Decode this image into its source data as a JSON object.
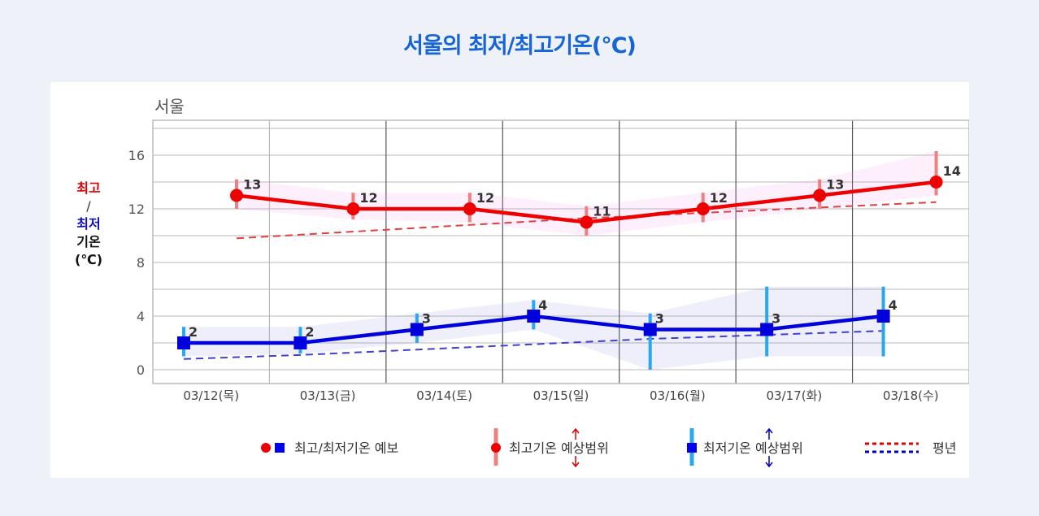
{
  "page_title": "서울의 최저/최고기온(°C)",
  "chart_data": {
    "type": "line",
    "title": "서울의 최저/최고기온(°C)",
    "subtitle": "서울",
    "ylabel": {
      "line1": "최고",
      "sep": "/",
      "line2": "최저",
      "line3": "기온",
      "unit": "(℃)"
    },
    "ylim": [
      -1,
      18
    ],
    "yticks": [
      0,
      4,
      8,
      12,
      16
    ],
    "grid": true,
    "categories": [
      "03/12(목)",
      "03/13(금)",
      "03/14(토)",
      "03/15(일)",
      "03/16(월)",
      "03/17(화)",
      "03/18(수)"
    ],
    "series": [
      {
        "name": "최고기온 예보",
        "color": "#ee0000",
        "values": [
          13,
          12,
          12,
          11,
          12,
          13,
          14
        ]
      },
      {
        "name": "최저기온 예보",
        "color": "#0000dd",
        "values": [
          2,
          2,
          3,
          4,
          3,
          3,
          4
        ]
      },
      {
        "name": "최고기온 예상범위",
        "color": "#f08080",
        "low": [
          12,
          11.2,
          11,
          10,
          11,
          12,
          13
        ],
        "high": [
          14.2,
          13.2,
          13.2,
          12.2,
          13.2,
          14.2,
          16.3
        ]
      },
      {
        "name": "최저기온 예상범위",
        "color": "#29a8f0",
        "low": [
          1,
          1.2,
          2,
          3,
          0,
          1,
          1
        ],
        "high": [
          3.2,
          3.2,
          4.2,
          5.2,
          4.2,
          6.2,
          6.2
        ]
      },
      {
        "name": "평년 최고",
        "color": "#e04040",
        "values": [
          9.8,
          10.3,
          10.8,
          11.3,
          11.7,
          12.1,
          12.5
        ]
      },
      {
        "name": "평년 최저",
        "color": "#4040d0",
        "values": [
          0.8,
          1.1,
          1.5,
          1.9,
          2.3,
          2.6,
          2.9
        ]
      }
    ],
    "legend_position": "bottom"
  },
  "legend": {
    "forecast": "최고/최저기온 예보",
    "high_range": "최고기온 예상범위",
    "low_range": "최저기온 예상범위",
    "normal": "평년"
  }
}
